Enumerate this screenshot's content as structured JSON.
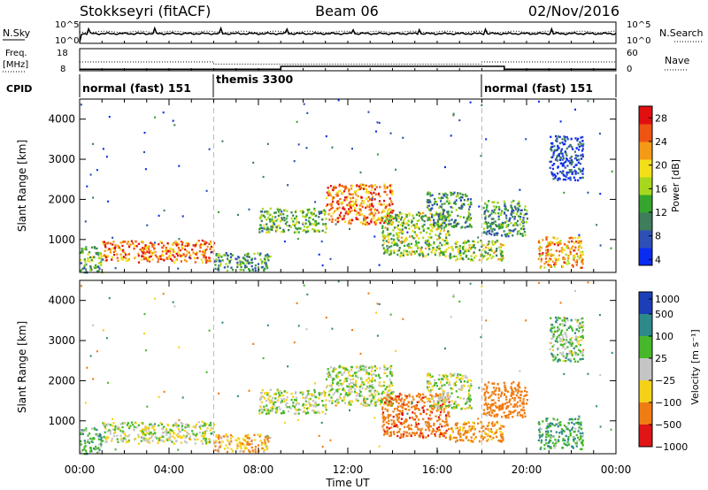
{
  "header": {
    "title": "Stokkseyri (fitACF)",
    "beam": "Beam 06",
    "date": "02/Nov/2016"
  },
  "noise_panel": {
    "left_label": "N.Sky",
    "left_top_tick": "10^5",
    "left_bottom_tick": "10^0",
    "right_label": "N.Search",
    "right_top_tick": "10^5",
    "right_bottom_tick": "10^0"
  },
  "freq_panel": {
    "left_label_line1": "Freq.",
    "left_label_line2": "[MHz]",
    "left_ticks": [
      "18",
      "8"
    ],
    "right_label": "Nave",
    "right_ticks": [
      "60",
      "0"
    ]
  },
  "cpid_panel": {
    "label": "CPID",
    "segments": [
      {
        "label": "normal (fast) 151",
        "start_hour": 0,
        "end_hour": 6
      },
      {
        "label": "themis 3300",
        "start_hour": 6,
        "end_hour": 18
      },
      {
        "label": "normal (fast) 151",
        "start_hour": 18,
        "end_hour": 24
      }
    ]
  },
  "power_colorbar": {
    "title": "Power [dB]",
    "tick_labels": [
      "28",
      "24",
      "20",
      "16",
      "12",
      "8",
      "4"
    ]
  },
  "velocity_colorbar": {
    "title": "Velocity [m s⁻¹]",
    "tick_labels": [
      "1000",
      "500",
      "100",
      "25",
      "−25",
      "−100",
      "−500",
      "−1000"
    ]
  },
  "chart_data": {
    "type": "heatmap",
    "xlabel": "Time UT",
    "ylabel": "Slant Range [km]",
    "x_tick_labels": [
      "00:00",
      "04:00",
      "08:00",
      "12:00",
      "16:00",
      "20:00",
      "00:00"
    ],
    "x_tick_hours": [
      0,
      4,
      8,
      12,
      16,
      20,
      24
    ],
    "xlim_hours": [
      0,
      24
    ],
    "ylim_km": [
      180,
      4500
    ],
    "y_tick_values": [
      1000,
      2000,
      3000,
      4000
    ],
    "y_tick_labels": [
      "1000",
      "2000",
      "3000",
      "4000"
    ],
    "dashed_vertical_lines_hours": [
      6,
      18
    ],
    "freq_mhz_hourly": [
      12,
      12,
      12,
      12,
      12,
      12,
      11,
      11,
      11,
      11,
      11,
      11,
      11,
      11,
      11,
      11,
      11,
      11,
      12,
      12,
      12,
      12,
      12,
      12
    ],
    "nave_step_hours": [
      [
        0,
        9,
        4
      ],
      [
        9,
        19,
        12
      ],
      [
        19,
        24,
        4
      ]
    ],
    "power_scale": {
      "min": 3,
      "max": 30,
      "colors": [
        "#0a2cf0",
        "#2e4fb5",
        "#3f7d5c",
        "#35a52e",
        "#a7d81d",
        "#f2df1a",
        "#f59a16",
        "#ee5513",
        "#e10f10"
      ]
    },
    "velocity_scale": {
      "min": -1000,
      "max": 1000,
      "bands": [
        {
          "from": 1000,
          "to": 500,
          "color": "#1c3fb8"
        },
        {
          "from": 500,
          "to": 100,
          "color": "#2e8a8a"
        },
        {
          "from": 100,
          "to": 25,
          "color": "#47b82b"
        },
        {
          "from": 25,
          "to": -25,
          "color": "#c5c5c5"
        },
        {
          "from": -25,
          "to": -100,
          "color": "#f4d21a"
        },
        {
          "from": -100,
          "to": -500,
          "color": "#f07d14"
        },
        {
          "from": -500,
          "to": -1000,
          "color": "#e01515"
        }
      ]
    },
    "echo_regions": [
      {
        "start_hour": 0.0,
        "end_hour": 1.0,
        "range_min": 200,
        "range_max": 850,
        "power_db": 14,
        "velocity": 60
      },
      {
        "start_hour": 1.0,
        "end_hour": 6.0,
        "range_min": 450,
        "range_max": 1000,
        "power_db": 24,
        "velocity": 0
      },
      {
        "start_hour": 6.0,
        "end_hour": 8.5,
        "range_min": 250,
        "range_max": 700,
        "power_db": 12,
        "velocity": -80
      },
      {
        "start_hour": 8.0,
        "end_hour": 11.0,
        "range_min": 1200,
        "range_max": 1800,
        "power_db": 14,
        "velocity": 0
      },
      {
        "start_hour": 11.0,
        "end_hour": 14.0,
        "range_min": 1400,
        "range_max": 2400,
        "power_db": 24,
        "velocity": 0
      },
      {
        "start_hour": 13.5,
        "end_hour": 16.5,
        "range_min": 600,
        "range_max": 1700,
        "power_db": 16,
        "velocity": -450
      },
      {
        "start_hour": 15.5,
        "end_hour": 17.5,
        "range_min": 1300,
        "range_max": 2200,
        "power_db": 12,
        "velocity": 0
      },
      {
        "start_hour": 16.5,
        "end_hour": 19.0,
        "range_min": 500,
        "range_max": 1000,
        "power_db": 16,
        "velocity": -150
      },
      {
        "start_hour": 18.0,
        "end_hour": 20.0,
        "range_min": 1100,
        "range_max": 2000,
        "power_db": 12,
        "velocity": -200
      },
      {
        "start_hour": 20.5,
        "end_hour": 22.5,
        "range_min": 300,
        "range_max": 1100,
        "power_db": 22,
        "velocity": 80
      },
      {
        "start_hour": 21.0,
        "end_hour": 22.5,
        "range_min": 2500,
        "range_max": 3600,
        "power_db": 6,
        "velocity": 40
      }
    ]
  }
}
